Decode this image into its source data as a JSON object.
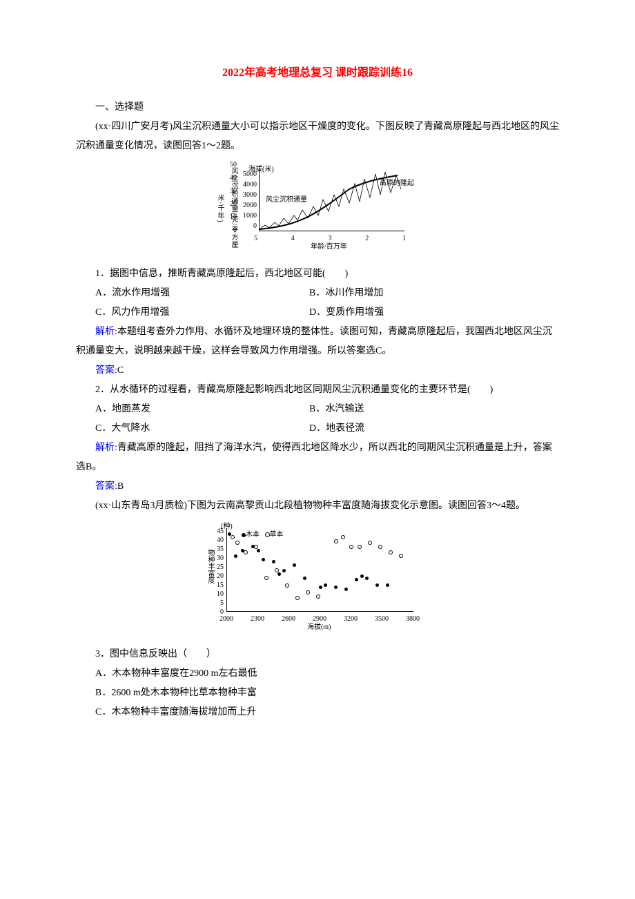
{
  "title": "2022年高考地理总复习 课时跟踪训练16",
  "section1_header": "一、选择题",
  "intro1": "(xx·四川广安月考)风尘沉积通量大小可以指示地区干燥度的变化。下图反映了青藏高原隆起与西北地区的风尘沉积通量变化情况，读图回答1～2题。",
  "chart1": {
    "type": "line",
    "y_label": "风尘沉积通量(克/平方厘米·千年)",
    "y_ticks": [
      "50",
      "40",
      "30",
      "20",
      "10",
      "0"
    ],
    "y2_header": "海拔(米)",
    "y2_ticks": [
      "5000",
      "4000",
      "3000",
      "2000",
      "1000",
      "0"
    ],
    "x_ticks": [
      "5",
      "4",
      "3",
      "2",
      "1"
    ],
    "x_label": "年龄/百万年",
    "ann1": "风尘沉积通量",
    "ann2": "高原的隆起",
    "font_size": 10,
    "background": "#ffffff"
  },
  "q1": {
    "stem": "1．据图中信息，推断青藏高原隆起后，西北地区可能(　　)",
    "a": "A．流水作用增强",
    "b": "B．冰川作用增加",
    "c": "C．风力作用增强",
    "d": "D．变质作用增强"
  },
  "q1_analysis_label": "解析:",
  "q1_analysis": "本题组考查外力作用、水循环及地理环境的整体性。读图可知，青藏高原隆起后，我国西北地区风尘沉积通量变大，说明越来越干燥，这样会导致风力作用增强。所以答案选C。",
  "q1_answer_label": "答案:",
  "q1_answer": "C",
  "q2": {
    "stem": "2．从水循环的过程看，青藏高原隆起影响西北地区同期风尘沉积通量变化的主要环节是(　　)",
    "a": "A．地面蒸发",
    "b": "B．水汽输送",
    "c": "C．大气降水",
    "d": "D．地表径流"
  },
  "q2_analysis_label": "解析:",
  "q2_analysis": "青藏高原的隆起，阻挡了海洋水汽，使得西北地区降水少，所以西北的同期风尘沉积通量是上升，答案选B。",
  "q2_answer_label": "答案:",
  "q2_answer": "B",
  "intro2": "(xx·山东青岛3月质检)下图为云南高黎贡山北段植物物种丰富度随海拔变化示意图。读图回答3～4题。",
  "chart2": {
    "type": "scatter",
    "y_unit": "(种)",
    "y_label": "物种丰富度",
    "y_ticks": [
      "45",
      "40",
      "35",
      "30",
      "25",
      "20",
      "15",
      "10",
      "5",
      "0"
    ],
    "x_ticks": [
      "2000",
      "2300",
      "2600",
      "2900",
      "3200",
      "3500",
      "3800"
    ],
    "x_label": "海拔(m)",
    "legend1": "木本",
    "legend2": "草本",
    "font_size": 10,
    "background": "#ffffff",
    "tree_points": [
      [
        2020,
        42
      ],
      [
        2080,
        30
      ],
      [
        2150,
        33
      ],
      [
        2250,
        35
      ],
      [
        2300,
        33
      ],
      [
        2350,
        28
      ],
      [
        2450,
        27
      ],
      [
        2500,
        20
      ],
      [
        2550,
        22
      ],
      [
        2650,
        25
      ],
      [
        2750,
        18
      ],
      [
        2900,
        13
      ],
      [
        2950,
        14
      ],
      [
        3050,
        13
      ],
      [
        3150,
        12
      ],
      [
        3250,
        17
      ],
      [
        3300,
        19
      ],
      [
        3350,
        18
      ],
      [
        3450,
        14
      ],
      [
        3550,
        14
      ]
    ],
    "herb_points": [
      [
        2050,
        40
      ],
      [
        2100,
        37
      ],
      [
        2180,
        32
      ],
      [
        2280,
        35
      ],
      [
        2380,
        18
      ],
      [
        2480,
        22
      ],
      [
        2580,
        14
      ],
      [
        2680,
        7
      ],
      [
        2780,
        10
      ],
      [
        2880,
        8
      ],
      [
        3050,
        38
      ],
      [
        3120,
        40
      ],
      [
        3200,
        35
      ],
      [
        3280,
        35
      ],
      [
        3380,
        37
      ],
      [
        3480,
        35
      ],
      [
        3580,
        32
      ],
      [
        3680,
        30
      ]
    ]
  },
  "q3": {
    "stem": "3．图中信息反映出（　　）",
    "a": "A．木本物种丰富度在2900 m左右最低",
    "b": "B．2600 m处木本物种比草本物种丰富",
    "c": "C．木本物种丰富度随海拔增加而上升"
  }
}
